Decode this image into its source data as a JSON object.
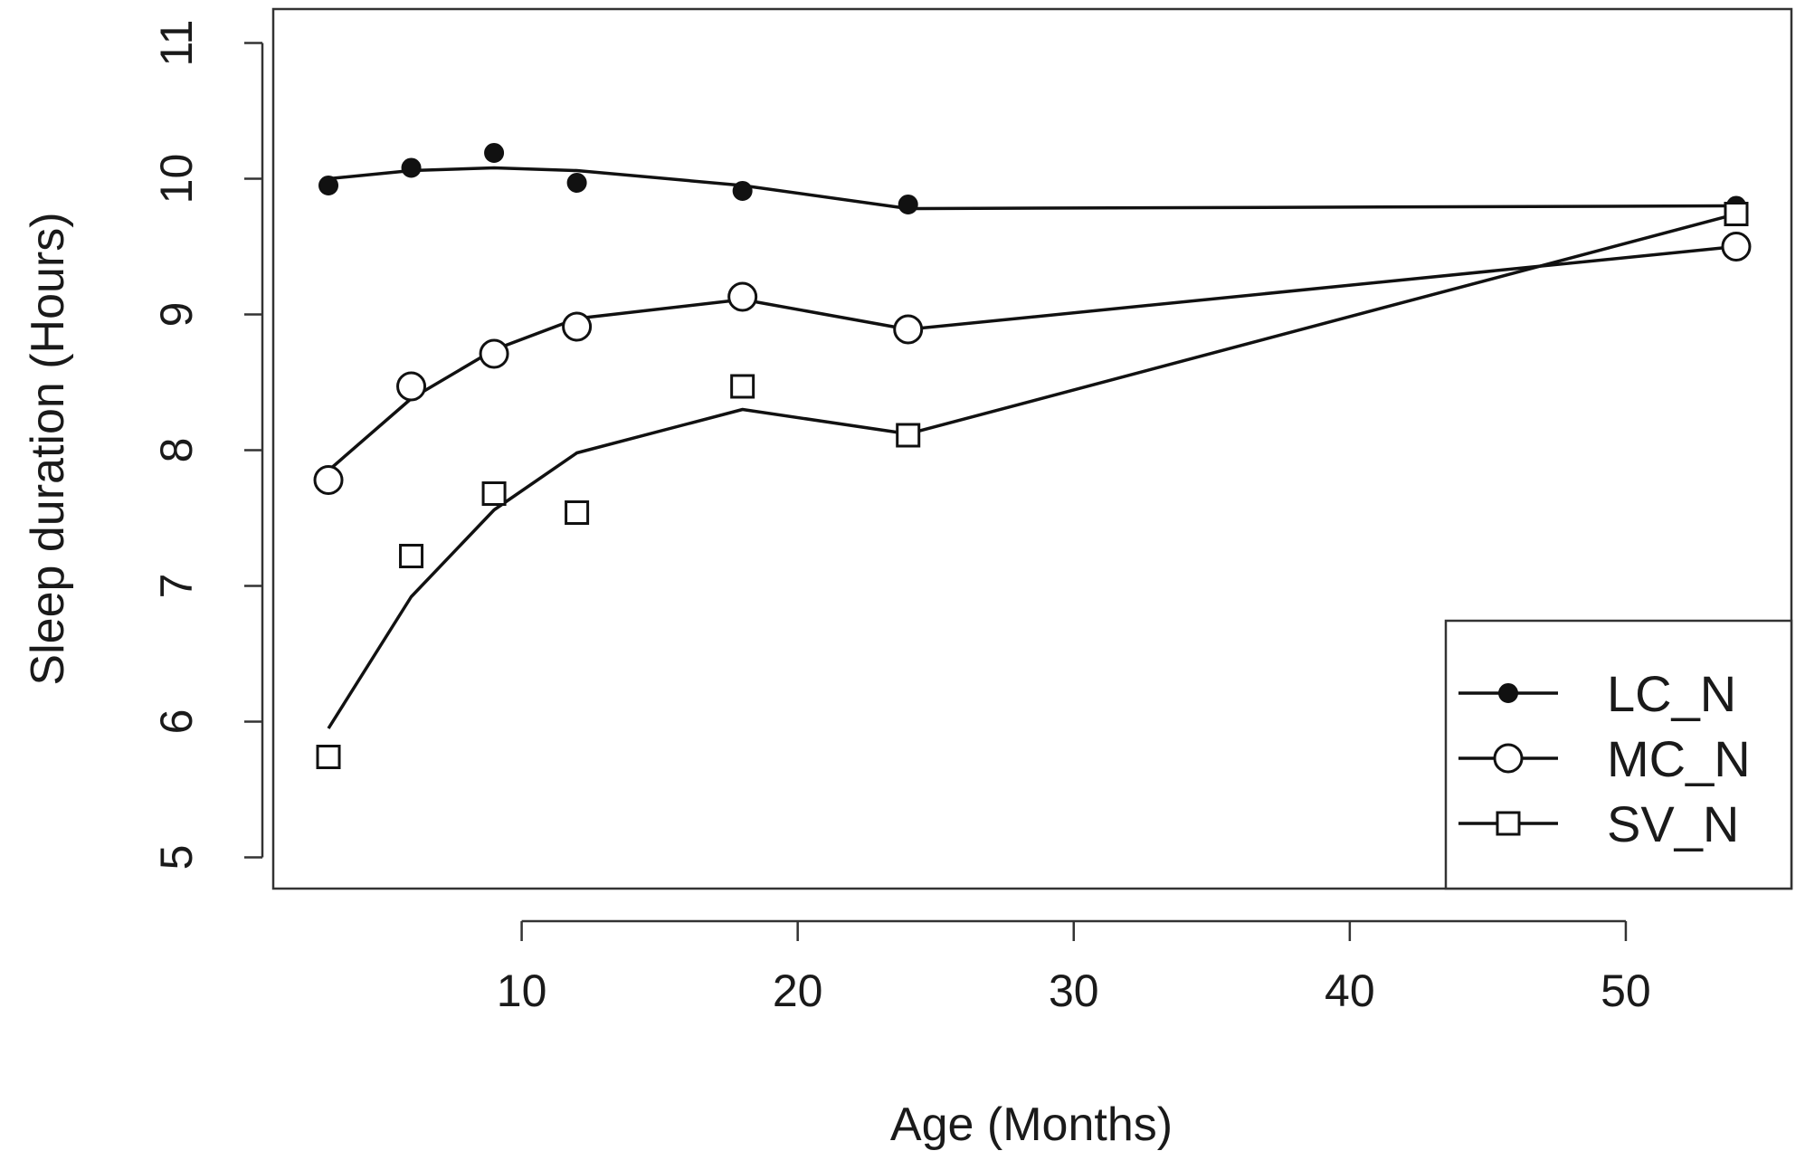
{
  "chart_data": {
    "type": "line",
    "title": "",
    "xlabel": "Age (Months)",
    "ylabel": "Sleep duration (Hours)",
    "xlim": [
      1,
      56
    ],
    "ylim": [
      4.77,
      11.25
    ],
    "xticks": [
      10,
      20,
      30,
      40,
      50
    ],
    "yticks": [
      5,
      6,
      7,
      8,
      9,
      10,
      11
    ],
    "grid": false,
    "legend_position": "bottom-right",
    "series": [
      {
        "name": "LC_N",
        "marker": "filled-circle",
        "x": [
          3,
          6,
          9,
          12,
          18,
          24,
          54
        ],
        "values": [
          9.95,
          10.08,
          10.19,
          9.97,
          9.91,
          9.81,
          9.8
        ],
        "fit_x": [
          3,
          6,
          9,
          12,
          18,
          24,
          54
        ],
        "fit_values": [
          10.0,
          10.06,
          10.08,
          10.06,
          9.95,
          9.78,
          9.8
        ]
      },
      {
        "name": "MC_N",
        "marker": "open-circle",
        "x": [
          3,
          6,
          9,
          12,
          18,
          24,
          54
        ],
        "values": [
          7.78,
          8.47,
          8.71,
          8.91,
          9.13,
          8.89,
          9.5
        ],
        "fit_x": [
          3,
          6,
          9,
          12,
          18,
          24,
          54
        ],
        "fit_values": [
          7.85,
          8.38,
          8.74,
          8.97,
          9.11,
          8.89,
          9.5
        ]
      },
      {
        "name": "SV_N",
        "marker": "open-square",
        "x": [
          3,
          6,
          9,
          12,
          18,
          24,
          54
        ],
        "values": [
          5.74,
          7.22,
          7.68,
          7.54,
          8.47,
          8.11,
          9.74
        ],
        "fit_x": [
          3,
          6,
          9,
          12,
          18,
          24,
          54
        ],
        "fit_values": [
          5.95,
          6.92,
          7.56,
          7.98,
          8.3,
          8.12,
          9.74
        ]
      }
    ]
  }
}
